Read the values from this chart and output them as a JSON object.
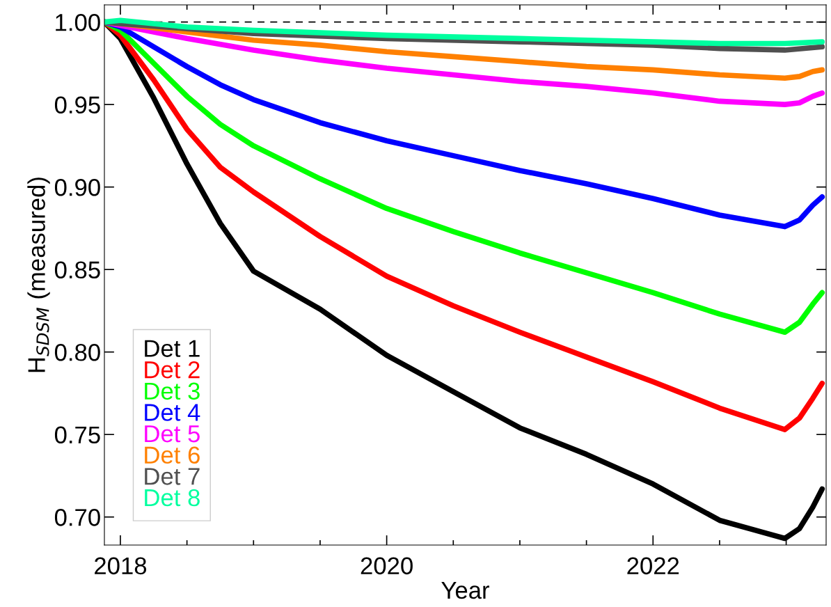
{
  "chart_data": {
    "type": "line",
    "xlabel": "Year",
    "ylabel": "H$_{SDSM}$ (measured)",
    "xlim": [
      2017.88,
      2023.3
    ],
    "xticks": [
      2018,
      2020,
      2022
    ],
    "ylim": [
      0.683,
      1.0104
    ],
    "yticks": [
      {
        "value": 0.7,
        "label": "0.70"
      },
      {
        "value": 0.75,
        "label": "0.75"
      },
      {
        "value": 0.8,
        "label": "0.80"
      },
      {
        "value": 0.85,
        "label": "0.85"
      },
      {
        "value": 0.9,
        "label": "0.90"
      },
      {
        "value": 0.95,
        "label": "0.95"
      },
      {
        "value": 1.0,
        "label": "1.00"
      }
    ],
    "grid": false,
    "legend": "bottom left",
    "marker": "none",
    "line_style": "solid",
    "ref_lines": [
      {
        "axis": "y",
        "value": 1.0,
        "color": "#000000",
        "line_style": "dashed"
      }
    ],
    "series": [
      {
        "name": "Det 1",
        "color": "#000000",
        "x": [
          2017.88,
          2018,
          2018.25,
          2018.5,
          2018.75,
          2019,
          2019.5,
          2020,
          2020.5,
          2021,
          2021.5,
          2022,
          2022.5,
          2022.99,
          2023.1,
          2023.2,
          2023.27
        ],
        "values": [
          1.0,
          0.99,
          0.954,
          0.914,
          0.878,
          0.849,
          0.826,
          0.798,
          0.776,
          0.754,
          0.738,
          0.72,
          0.698,
          0.687,
          0.693,
          0.706,
          0.717
        ]
      },
      {
        "name": "Det 2",
        "color": "#ff0000",
        "x": [
          2017.88,
          2018,
          2018.25,
          2018.5,
          2018.75,
          2019,
          2019.5,
          2020,
          2020.5,
          2021,
          2021.5,
          2022,
          2022.5,
          2022.99,
          2023.1,
          2023.2,
          2023.27
        ],
        "values": [
          1.0,
          0.992,
          0.965,
          0.935,
          0.912,
          0.897,
          0.87,
          0.846,
          0.828,
          0.812,
          0.797,
          0.782,
          0.766,
          0.753,
          0.76,
          0.772,
          0.781
        ]
      },
      {
        "name": "Det 3",
        "color": "#00ff00",
        "x": [
          2017.88,
          2018,
          2018.25,
          2018.5,
          2018.75,
          2019,
          2019.5,
          2020,
          2020.5,
          2021,
          2021.5,
          2022,
          2022.5,
          2022.99,
          2023.1,
          2023.2,
          2023.27
        ],
        "values": [
          1.0,
          0.995,
          0.975,
          0.955,
          0.938,
          0.925,
          0.905,
          0.887,
          0.873,
          0.86,
          0.848,
          0.836,
          0.823,
          0.812,
          0.818,
          0.829,
          0.836
        ]
      },
      {
        "name": "Det 4",
        "color": "#0000ff",
        "x": [
          2017.88,
          2018,
          2018.25,
          2018.5,
          2018.75,
          2019,
          2019.5,
          2020,
          2020.5,
          2021,
          2021.5,
          2022,
          2022.5,
          2022.99,
          2023.1,
          2023.2,
          2023.27
        ],
        "values": [
          1.0,
          0.997,
          0.985,
          0.973,
          0.962,
          0.953,
          0.939,
          0.928,
          0.919,
          0.91,
          0.902,
          0.893,
          0.883,
          0.876,
          0.88,
          0.889,
          0.894
        ]
      },
      {
        "name": "Det 5",
        "color": "#ff00ff",
        "x": [
          2017.88,
          2018,
          2018.5,
          2019,
          2019.5,
          2020,
          2020.5,
          2021,
          2021.5,
          2022,
          2022.5,
          2022.99,
          2023.1,
          2023.2,
          2023.27
        ],
        "values": [
          1.0,
          0.998,
          0.99,
          0.983,
          0.977,
          0.972,
          0.968,
          0.964,
          0.961,
          0.957,
          0.952,
          0.95,
          0.951,
          0.955,
          0.957
        ]
      },
      {
        "name": "Det 6",
        "color": "#ff8000",
        "x": [
          2017.88,
          2018,
          2018.5,
          2019,
          2019.5,
          2020,
          2020.5,
          2021,
          2021.5,
          2022,
          2022.5,
          2022.99,
          2023.1,
          2023.2,
          2023.27
        ],
        "values": [
          1.0,
          0.999,
          0.994,
          0.989,
          0.986,
          0.982,
          0.979,
          0.976,
          0.973,
          0.971,
          0.968,
          0.966,
          0.967,
          0.97,
          0.971
        ]
      },
      {
        "name": "Det 7",
        "color": "#505050",
        "x": [
          2017.88,
          2018,
          2018.5,
          2019,
          2020,
          2021,
          2022,
          2022.5,
          2022.99,
          2023.27
        ],
        "values": [
          1.0,
          0.999,
          0.996,
          0.993,
          0.99,
          0.988,
          0.986,
          0.984,
          0.983,
          0.985
        ]
      },
      {
        "name": "Det 8",
        "color": "#00ff9f",
        "x": [
          2017.88,
          2018,
          2018.5,
          2019,
          2020,
          2021,
          2022,
          2022.5,
          2022.99,
          2023.27
        ],
        "values": [
          1.0,
          1.001,
          0.997,
          0.995,
          0.992,
          0.99,
          0.988,
          0.987,
          0.987,
          0.988
        ]
      }
    ]
  }
}
